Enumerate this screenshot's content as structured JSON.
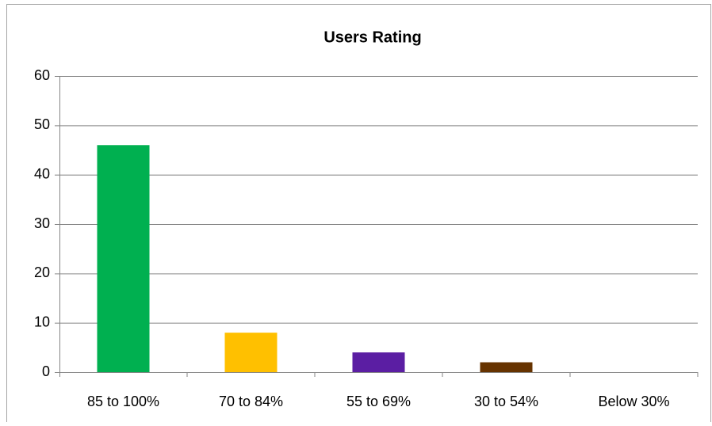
{
  "chart_data": {
    "type": "bar",
    "title": "Users Rating",
    "categories": [
      "85 to 100%",
      "70 to 84%",
      "55 to 69%",
      "30 to 54%",
      "Below 30%"
    ],
    "values": [
      46,
      8,
      4,
      2,
      0
    ],
    "colors": [
      "#00b050",
      "#ffc000",
      "#5b1ea3",
      "#663300",
      "#7f7f7f"
    ],
    "ylim": [
      0,
      60
    ],
    "yticks": [
      0,
      10,
      20,
      30,
      40,
      50,
      60
    ],
    "grid": true
  }
}
